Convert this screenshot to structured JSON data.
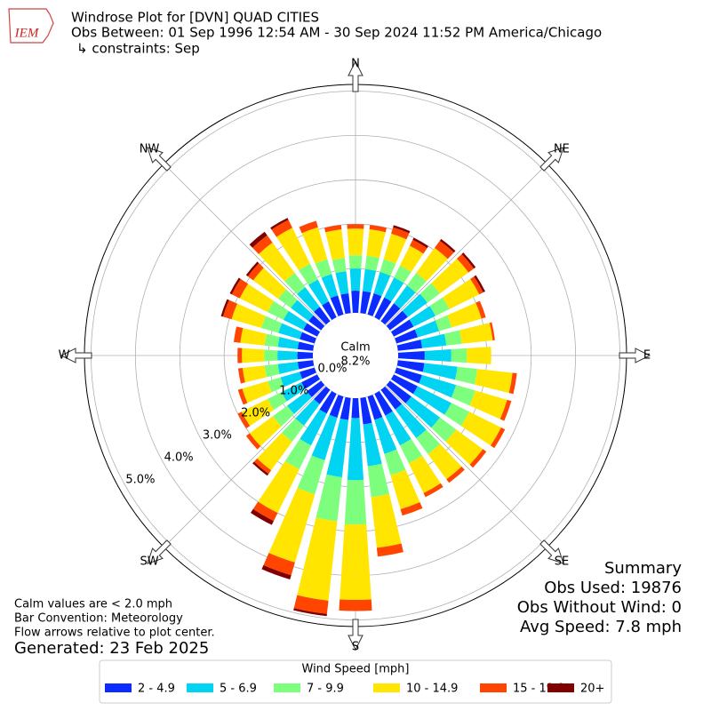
{
  "chart_data": {
    "type": "windrose",
    "logo": "IEM",
    "title": "Windrose Plot for [DVN] QUAD CITIES",
    "subtitle": "Obs Between: 01 Sep 1996 12:54 AM - 30 Sep 2024 11:52 PM America/Chicago",
    "constraints": "↳ constraints: Sep",
    "compass": [
      "N",
      "NE",
      "E",
      "SE",
      "S",
      "SW",
      "W",
      "NW"
    ],
    "calm_label": "Calm",
    "calm": {
      "value": 8.2,
      "label": "8.2%"
    },
    "rlim": [
      0,
      5.15
    ],
    "rticks": [
      {
        "value": 0,
        "label": "0.0%"
      },
      {
        "value": 1,
        "label": "1.0%"
      },
      {
        "value": 2,
        "label": "2.0%"
      },
      {
        "value": 3,
        "label": "3.0%"
      },
      {
        "value": 4,
        "label": "4.0%"
      },
      {
        "value": 5,
        "label": "5.0%"
      }
    ],
    "grid": true,
    "directions": [
      0,
      10,
      20,
      30,
      40,
      50,
      60,
      70,
      80,
      90,
      100,
      110,
      120,
      130,
      140,
      150,
      160,
      170,
      180,
      190,
      200,
      210,
      220,
      230,
      240,
      250,
      260,
      270,
      280,
      290,
      300,
      310,
      320,
      330,
      340,
      350
    ],
    "legend_title": "Wind Speed [mph]",
    "series": [
      {
        "name": "2 - 4.9",
        "color": "#0b2bff",
        "values": [
          0.5,
          0.5,
          0.5,
          0.5,
          0.5,
          0.5,
          0.5,
          0.5,
          0.55,
          0.6,
          0.6,
          0.6,
          0.6,
          0.6,
          0.55,
          0.55,
          0.55,
          0.6,
          0.45,
          0.5,
          0.5,
          0.5,
          0.4,
          0.4,
          0.4,
          0.35,
          0.35,
          0.35,
          0.35,
          0.35,
          0.35,
          0.35,
          0.4,
          0.4,
          0.45,
          0.45
        ]
      },
      {
        "name": "5 - 6.9",
        "color": "#00d4f2",
        "values": [
          0.5,
          0.5,
          0.5,
          0.5,
          0.5,
          0.55,
          0.55,
          0.5,
          0.55,
          0.6,
          0.75,
          0.8,
          0.85,
          0.8,
          0.8,
          0.75,
          0.8,
          0.95,
          1.4,
          1.3,
          1.0,
          0.8,
          0.6,
          0.55,
          0.5,
          0.45,
          0.45,
          0.45,
          0.45,
          0.5,
          0.5,
          0.5,
          0.55,
          0.55,
          0.5,
          0.5
        ]
      },
      {
        "name": "7 - 9.9",
        "color": "#7dff7d",
        "values": [
          0.3,
          0.3,
          0.3,
          0.3,
          0.35,
          0.35,
          0.35,
          0.3,
          0.35,
          0.35,
          0.45,
          0.45,
          0.45,
          0.45,
          0.45,
          0.45,
          0.5,
          0.7,
          1.0,
          1.0,
          0.8,
          0.6,
          0.45,
          0.4,
          0.35,
          0.3,
          0.3,
          0.3,
          0.3,
          0.4,
          0.4,
          0.35,
          0.4,
          0.4,
          0.35,
          0.3
        ]
      },
      {
        "name": "10 - 14.9",
        "color": "#ffe500",
        "values": [
          0.6,
          0.6,
          0.6,
          0.5,
          0.7,
          0.8,
          0.75,
          0.7,
          0.7,
          0.55,
          0.8,
          0.75,
          0.8,
          0.75,
          0.7,
          0.75,
          0.8,
          1.15,
          1.7,
          1.8,
          1.6,
          1.1,
          0.8,
          0.65,
          0.65,
          0.6,
          0.5,
          0.5,
          0.55,
          0.7,
          0.7,
          0.7,
          0.85,
          0.9,
          0.75,
          0.65
        ]
      },
      {
        "name": "15 - 19.9",
        "color": "#ff4500",
        "values": [
          0.1,
          0.1,
          0.15,
          0.15,
          0.2,
          0.15,
          0.1,
          0.1,
          0.05,
          0,
          0.1,
          0.1,
          0.1,
          0.1,
          0.1,
          0.1,
          0.15,
          0.2,
          0.25,
          0.3,
          0.3,
          0.2,
          0.1,
          0.1,
          0.1,
          0.1,
          0.1,
          0.1,
          0.15,
          0.2,
          0.2,
          0.15,
          0.2,
          0.2,
          0.15,
          0.1
        ]
      },
      {
        "name": "20+",
        "color": "#800000",
        "values": [
          0,
          0,
          0.05,
          0.05,
          0.05,
          0.05,
          0.05,
          0,
          0,
          0,
          0,
          0,
          0,
          0,
          0,
          0,
          0,
          0,
          0,
          0.05,
          0.1,
          0.1,
          0.05,
          0,
          0,
          0,
          0,
          0,
          0,
          0.05,
          0.05,
          0.05,
          0.1,
          0.05,
          0,
          0
        ]
      }
    ],
    "summary": [
      "Summary",
      "Obs Used: 19876",
      "Obs Without Wind: 0",
      "Avg Speed: 7.8 mph"
    ],
    "notes": [
      "Calm values are < 2.0 mph",
      "Bar Convention: Meteorology",
      "Flow arrows relative to plot center."
    ],
    "generated": "Generated: 23 Feb 2025"
  }
}
